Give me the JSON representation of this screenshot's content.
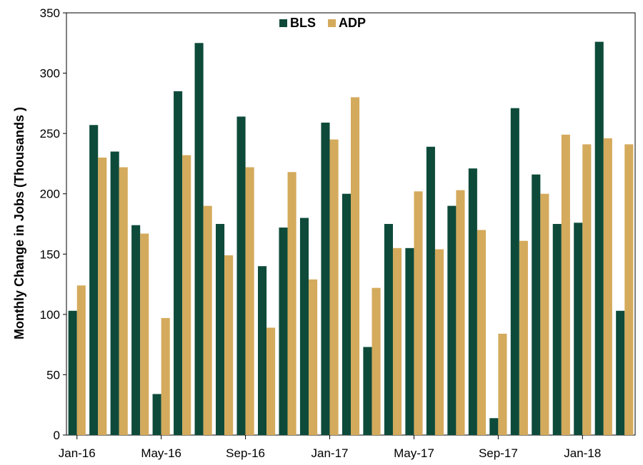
{
  "chart_data": {
    "type": "bar",
    "ylabel": "Monthly Change in Jobs (Thousands )",
    "xlabel": "",
    "ylim": [
      0,
      350
    ],
    "yticks": [
      0,
      50,
      100,
      150,
      200,
      250,
      300,
      350
    ],
    "xtick_labels": [
      "Jan-16",
      "May-16",
      "Sep-16",
      "Jan-17",
      "May-17",
      "Sep-17",
      "Jan-18"
    ],
    "xtick_every": 4,
    "legend_position": "top-center",
    "grid": false,
    "categories": [
      "Jan-16",
      "Feb-16",
      "Mar-16",
      "Apr-16",
      "May-16",
      "Jun-16",
      "Jul-16",
      "Aug-16",
      "Sep-16",
      "Oct-16",
      "Nov-16",
      "Dec-16",
      "Jan-17",
      "Feb-17",
      "Mar-17",
      "Apr-17",
      "May-17",
      "Jun-17",
      "Jul-17",
      "Aug-17",
      "Sep-17",
      "Oct-17",
      "Nov-17",
      "Dec-17",
      "Jan-18",
      "Feb-18",
      "Mar-18"
    ],
    "series": [
      {
        "name": "BLS",
        "color": "#0d4a3a",
        "values": [
          103,
          257,
          235,
          174,
          34,
          285,
          325,
          175,
          264,
          140,
          172,
          180,
          259,
          200,
          73,
          175,
          155,
          239,
          190,
          221,
          14,
          271,
          216,
          175,
          176,
          326,
          103
        ]
      },
      {
        "name": "ADP",
        "color": "#d4aa5c",
        "values": [
          124,
          230,
          222,
          167,
          97,
          232,
          190,
          149,
          222,
          89,
          218,
          129,
          245,
          280,
          122,
          155,
          202,
          154,
          203,
          170,
          84,
          161,
          200,
          249,
          241,
          246,
          241
        ]
      }
    ]
  }
}
